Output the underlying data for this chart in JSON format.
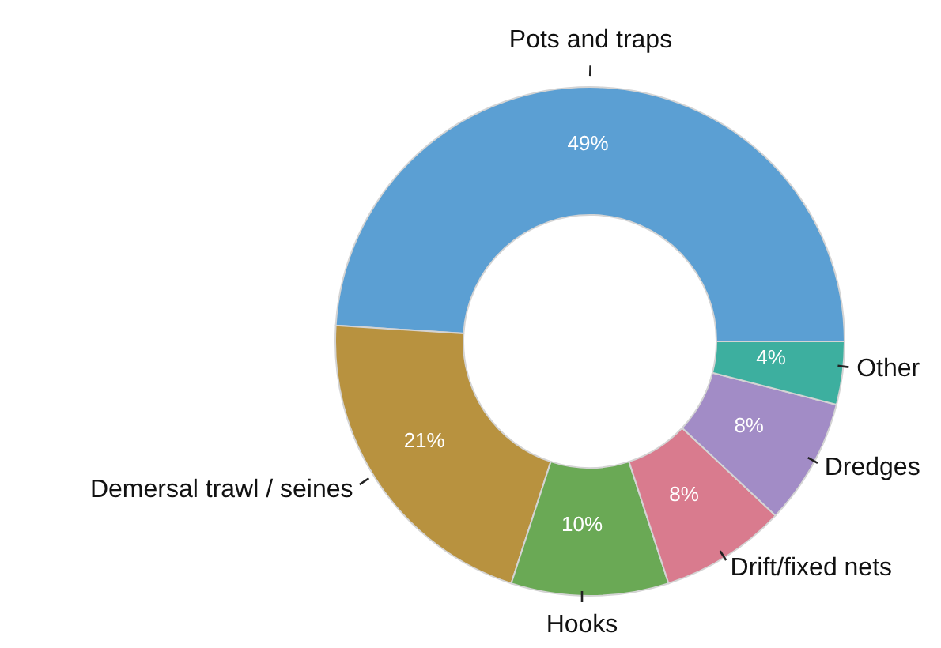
{
  "chart_data": {
    "type": "donut",
    "categories": [
      "Pots and traps",
      "Demersal trawl / seines",
      "Hooks",
      "Drift/fixed nets",
      "Dredges",
      "Other"
    ],
    "values": [
      49,
      21,
      10,
      8,
      8,
      4
    ],
    "value_labels": [
      "49%",
      "21%",
      "10%",
      "8%",
      "8%",
      "4%"
    ],
    "colors": [
      "#5b9fd3",
      "#b8923f",
      "#6aa955",
      "#d97b8e",
      "#a28cc6",
      "#3daf9f"
    ],
    "legend": false
  }
}
